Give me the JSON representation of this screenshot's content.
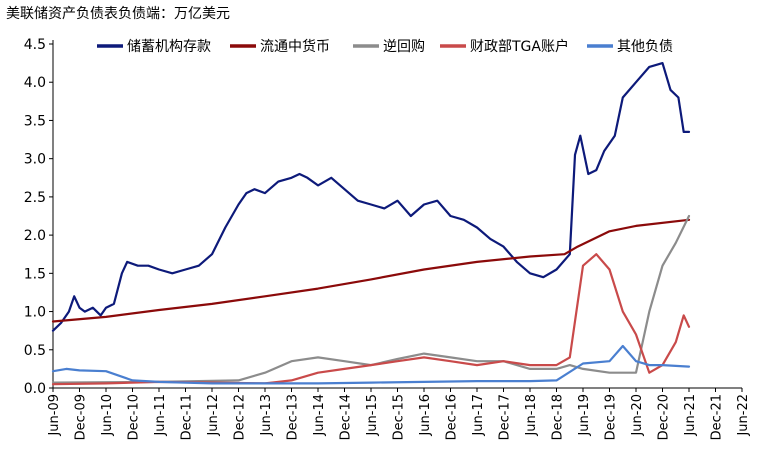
{
  "chart_data": {
    "type": "line",
    "title": "美联储资产负债表负债端：万亿美元",
    "xlabel": "",
    "ylabel": "",
    "ylim": [
      0,
      4.5
    ],
    "yticks": [
      "0.0",
      "0.5",
      "1.0",
      "1.5",
      "2.0",
      "2.5",
      "3.0",
      "3.5",
      "4.0",
      "4.5"
    ],
    "x_tick_labels": [
      "Jun-09",
      "Dec-09",
      "Jun-10",
      "Dec-10",
      "Jun-11",
      "Dec-11",
      "Jun-12",
      "Dec-12",
      "Jun-13",
      "Dec-13",
      "Jun-14",
      "Dec-14",
      "Jun-15",
      "Dec-15",
      "Jun-16",
      "Dec-16",
      "Jun-17",
      "Dec-17",
      "Jun-18",
      "Dec-18",
      "Jun-19",
      "Dec-19",
      "Jun-20",
      "Dec-20",
      "Jun-21",
      "Dec-21",
      "Jun-22"
    ],
    "grid": false,
    "legend_position": "top",
    "x_unit": "half-years since Jun-09",
    "series": [
      {
        "name": "储蓄机构存款",
        "color": "#0d1a7a",
        "points": [
          [
            0,
            0.75
          ],
          [
            0.3,
            0.85
          ],
          [
            0.6,
            1.0
          ],
          [
            0.8,
            1.2
          ],
          [
            1.0,
            1.05
          ],
          [
            1.2,
            1.0
          ],
          [
            1.5,
            1.05
          ],
          [
            1.8,
            0.95
          ],
          [
            2.0,
            1.05
          ],
          [
            2.3,
            1.1
          ],
          [
            2.6,
            1.5
          ],
          [
            2.8,
            1.65
          ],
          [
            3.2,
            1.6
          ],
          [
            3.6,
            1.6
          ],
          [
            4.0,
            1.55
          ],
          [
            4.5,
            1.5
          ],
          [
            5.0,
            1.55
          ],
          [
            5.5,
            1.6
          ],
          [
            6.0,
            1.75
          ],
          [
            6.5,
            2.1
          ],
          [
            7.0,
            2.4
          ],
          [
            7.3,
            2.55
          ],
          [
            7.6,
            2.6
          ],
          [
            8.0,
            2.55
          ],
          [
            8.5,
            2.7
          ],
          [
            9.0,
            2.75
          ],
          [
            9.3,
            2.8
          ],
          [
            9.6,
            2.75
          ],
          [
            10.0,
            2.65
          ],
          [
            10.5,
            2.75
          ],
          [
            11.0,
            2.6
          ],
          [
            11.5,
            2.45
          ],
          [
            12.0,
            2.4
          ],
          [
            12.5,
            2.35
          ],
          [
            13.0,
            2.45
          ],
          [
            13.5,
            2.25
          ],
          [
            14.0,
            2.4
          ],
          [
            14.5,
            2.45
          ],
          [
            15.0,
            2.25
          ],
          [
            15.5,
            2.2
          ],
          [
            16.0,
            2.1
          ],
          [
            16.5,
            1.95
          ],
          [
            17.0,
            1.85
          ],
          [
            17.5,
            1.65
          ],
          [
            18.0,
            1.5
          ],
          [
            18.5,
            1.45
          ],
          [
            19.0,
            1.55
          ],
          [
            19.5,
            1.75
          ],
          [
            19.7,
            3.05
          ],
          [
            19.9,
            3.3
          ],
          [
            20.2,
            2.8
          ],
          [
            20.5,
            2.85
          ],
          [
            20.8,
            3.1
          ],
          [
            21.2,
            3.3
          ],
          [
            21.5,
            3.8
          ],
          [
            22.0,
            4.0
          ],
          [
            22.5,
            4.2
          ],
          [
            23.0,
            4.25
          ],
          [
            23.3,
            3.9
          ],
          [
            23.6,
            3.8
          ],
          [
            23.8,
            3.35
          ],
          [
            24.0,
            3.35
          ]
        ]
      },
      {
        "name": "流通中货币",
        "color": "#8b0a0a",
        "points": [
          [
            0,
            0.87
          ],
          [
            2,
            0.93
          ],
          [
            4,
            1.02
          ],
          [
            6,
            1.1
          ],
          [
            8,
            1.2
          ],
          [
            10,
            1.3
          ],
          [
            12,
            1.42
          ],
          [
            14,
            1.55
          ],
          [
            16,
            1.65
          ],
          [
            18,
            1.72
          ],
          [
            19.3,
            1.75
          ],
          [
            19.8,
            1.85
          ],
          [
            21,
            2.05
          ],
          [
            22,
            2.12
          ],
          [
            24,
            2.2
          ]
        ]
      },
      {
        "name": "逆回购",
        "color": "#8c8c8c",
        "points": [
          [
            0,
            0.07
          ],
          [
            4,
            0.08
          ],
          [
            7,
            0.1
          ],
          [
            8,
            0.2
          ],
          [
            9,
            0.35
          ],
          [
            10,
            0.4
          ],
          [
            11,
            0.35
          ],
          [
            12,
            0.3
          ],
          [
            13,
            0.38
          ],
          [
            14,
            0.45
          ],
          [
            15,
            0.4
          ],
          [
            16,
            0.35
          ],
          [
            17,
            0.35
          ],
          [
            18,
            0.25
          ],
          [
            19,
            0.25
          ],
          [
            19.5,
            0.3
          ],
          [
            20,
            0.25
          ],
          [
            21,
            0.2
          ],
          [
            22,
            0.2
          ],
          [
            22.5,
            1.0
          ],
          [
            23.0,
            1.6
          ],
          [
            23.5,
            1.9
          ],
          [
            24.0,
            2.25
          ]
        ]
      },
      {
        "name": "财政部TGA账户",
        "color": "#c94a4a",
        "points": [
          [
            0,
            0.05
          ],
          [
            2,
            0.06
          ],
          [
            4,
            0.08
          ],
          [
            6,
            0.07
          ],
          [
            8,
            0.06
          ],
          [
            9,
            0.1
          ],
          [
            10,
            0.2
          ],
          [
            11,
            0.25
          ],
          [
            12,
            0.3
          ],
          [
            13,
            0.35
          ],
          [
            14,
            0.4
          ],
          [
            15,
            0.35
          ],
          [
            16,
            0.3
          ],
          [
            17,
            0.35
          ],
          [
            18,
            0.3
          ],
          [
            19,
            0.3
          ],
          [
            19.5,
            0.4
          ],
          [
            20,
            1.6
          ],
          [
            20.5,
            1.75
          ],
          [
            21,
            1.55
          ],
          [
            21.5,
            1.0
          ],
          [
            22,
            0.7
          ],
          [
            22.5,
            0.2
          ],
          [
            23,
            0.3
          ],
          [
            23.5,
            0.6
          ],
          [
            23.8,
            0.95
          ],
          [
            24,
            0.8
          ]
        ]
      },
      {
        "name": "其他负债",
        "color": "#4a7fd0",
        "points": [
          [
            0,
            0.22
          ],
          [
            0.5,
            0.25
          ],
          [
            1,
            0.23
          ],
          [
            2,
            0.22
          ],
          [
            3,
            0.1
          ],
          [
            4,
            0.08
          ],
          [
            5,
            0.07
          ],
          [
            6,
            0.06
          ],
          [
            8,
            0.06
          ],
          [
            10,
            0.06
          ],
          [
            12,
            0.07
          ],
          [
            14,
            0.08
          ],
          [
            16,
            0.09
          ],
          [
            18,
            0.09
          ],
          [
            19,
            0.1
          ],
          [
            20,
            0.32
          ],
          [
            21,
            0.35
          ],
          [
            21.5,
            0.55
          ],
          [
            22,
            0.35
          ],
          [
            22.5,
            0.3
          ],
          [
            23,
            0.3
          ],
          [
            24,
            0.28
          ]
        ]
      }
    ]
  }
}
